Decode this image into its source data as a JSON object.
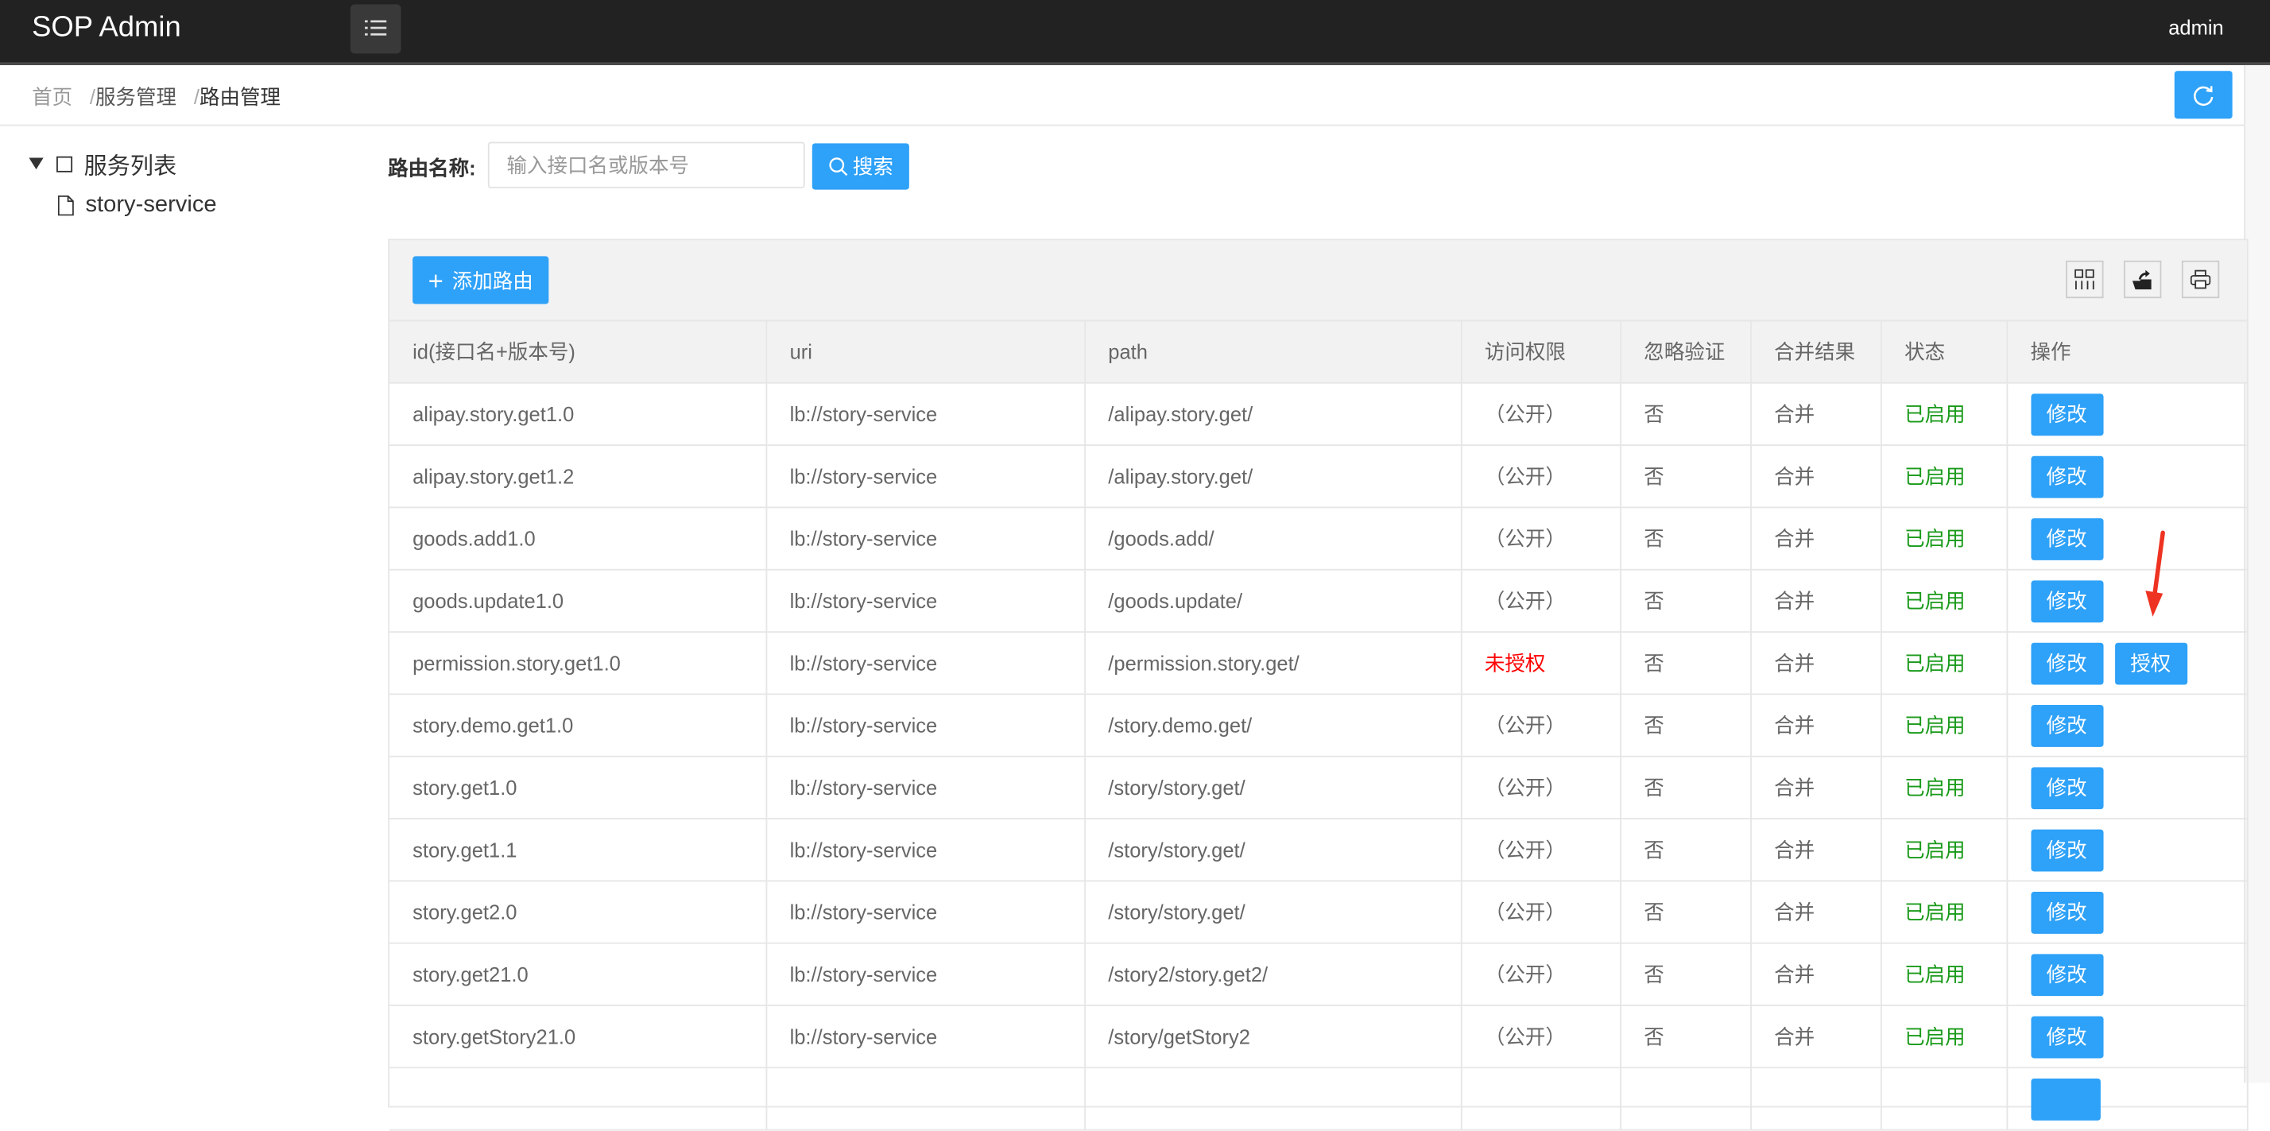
{
  "header": {
    "title": "SOP Admin",
    "user": "admin"
  },
  "breadcrumb": [
    "首页",
    "服务管理",
    "路由管理"
  ],
  "tree": {
    "root": "服务列表",
    "children": [
      "story-service"
    ]
  },
  "search": {
    "label": "路由名称:",
    "placeholder": "输入接口名或版本号",
    "value": "",
    "button": "搜索"
  },
  "toolbar": {
    "add_label": "添加路由",
    "icons": [
      "columns-filter-icon",
      "export-icon",
      "print-icon"
    ]
  },
  "table": {
    "columns": [
      "id(接口名+版本号)",
      "uri",
      "path",
      "访问权限",
      "忽略验证",
      "合并结果",
      "状态",
      "操作"
    ],
    "rows": [
      {
        "id": "alipay.story.get1.0",
        "uri": "lb://story-service",
        "path": "/alipay.story.get/",
        "access": "（公开）",
        "ignore": "否",
        "merge": "合并",
        "status": "已启用",
        "actions": [
          "修改"
        ]
      },
      {
        "id": "alipay.story.get1.2",
        "uri": "lb://story-service",
        "path": "/alipay.story.get/",
        "access": "（公开）",
        "ignore": "否",
        "merge": "合并",
        "status": "已启用",
        "actions": [
          "修改"
        ]
      },
      {
        "id": "goods.add1.0",
        "uri": "lb://story-service",
        "path": "/goods.add/",
        "access": "（公开）",
        "ignore": "否",
        "merge": "合并",
        "status": "已启用",
        "actions": [
          "修改"
        ]
      },
      {
        "id": "goods.update1.0",
        "uri": "lb://story-service",
        "path": "/goods.update/",
        "access": "（公开）",
        "ignore": "否",
        "merge": "合并",
        "status": "已启用",
        "actions": [
          "修改"
        ]
      },
      {
        "id": "permission.story.get1.0",
        "uri": "lb://story-service",
        "path": "/permission.story.get/",
        "access": "未授权",
        "access_denied": true,
        "ignore": "否",
        "merge": "合并",
        "status": "已启用",
        "actions": [
          "修改",
          "授权"
        ]
      },
      {
        "id": "story.demo.get1.0",
        "uri": "lb://story-service",
        "path": "/story.demo.get/",
        "access": "（公开）",
        "ignore": "否",
        "merge": "合并",
        "status": "已启用",
        "actions": [
          "修改"
        ]
      },
      {
        "id": "story.get1.0",
        "uri": "lb://story-service",
        "path": "/story/story.get/",
        "access": "（公开）",
        "ignore": "否",
        "merge": "合并",
        "status": "已启用",
        "actions": [
          "修改"
        ]
      },
      {
        "id": "story.get1.1",
        "uri": "lb://story-service",
        "path": "/story/story.get/",
        "access": "（公开）",
        "ignore": "否",
        "merge": "合并",
        "status": "已启用",
        "actions": [
          "修改"
        ]
      },
      {
        "id": "story.get2.0",
        "uri": "lb://story-service",
        "path": "/story/story.get/",
        "access": "（公开）",
        "ignore": "否",
        "merge": "合并",
        "status": "已启用",
        "actions": [
          "修改"
        ]
      },
      {
        "id": "story.get21.0",
        "uri": "lb://story-service",
        "path": "/story2/story.get2/",
        "access": "（公开）",
        "ignore": "否",
        "merge": "合并",
        "status": "已启用",
        "actions": [
          "修改"
        ]
      },
      {
        "id": "story.getStory21.0",
        "uri": "lb://story-service",
        "path": "/story/getStory2",
        "access": "（公开）",
        "ignore": "否",
        "merge": "合并",
        "status": "已启用",
        "actions": [
          "修改"
        ]
      }
    ]
  },
  "colors": {
    "primary": "#2ea1f8",
    "enabled": "#1a9a1a",
    "denied": "#ff0000",
    "header_bg": "#222222",
    "annotation_arrow": "#ee3322"
  }
}
